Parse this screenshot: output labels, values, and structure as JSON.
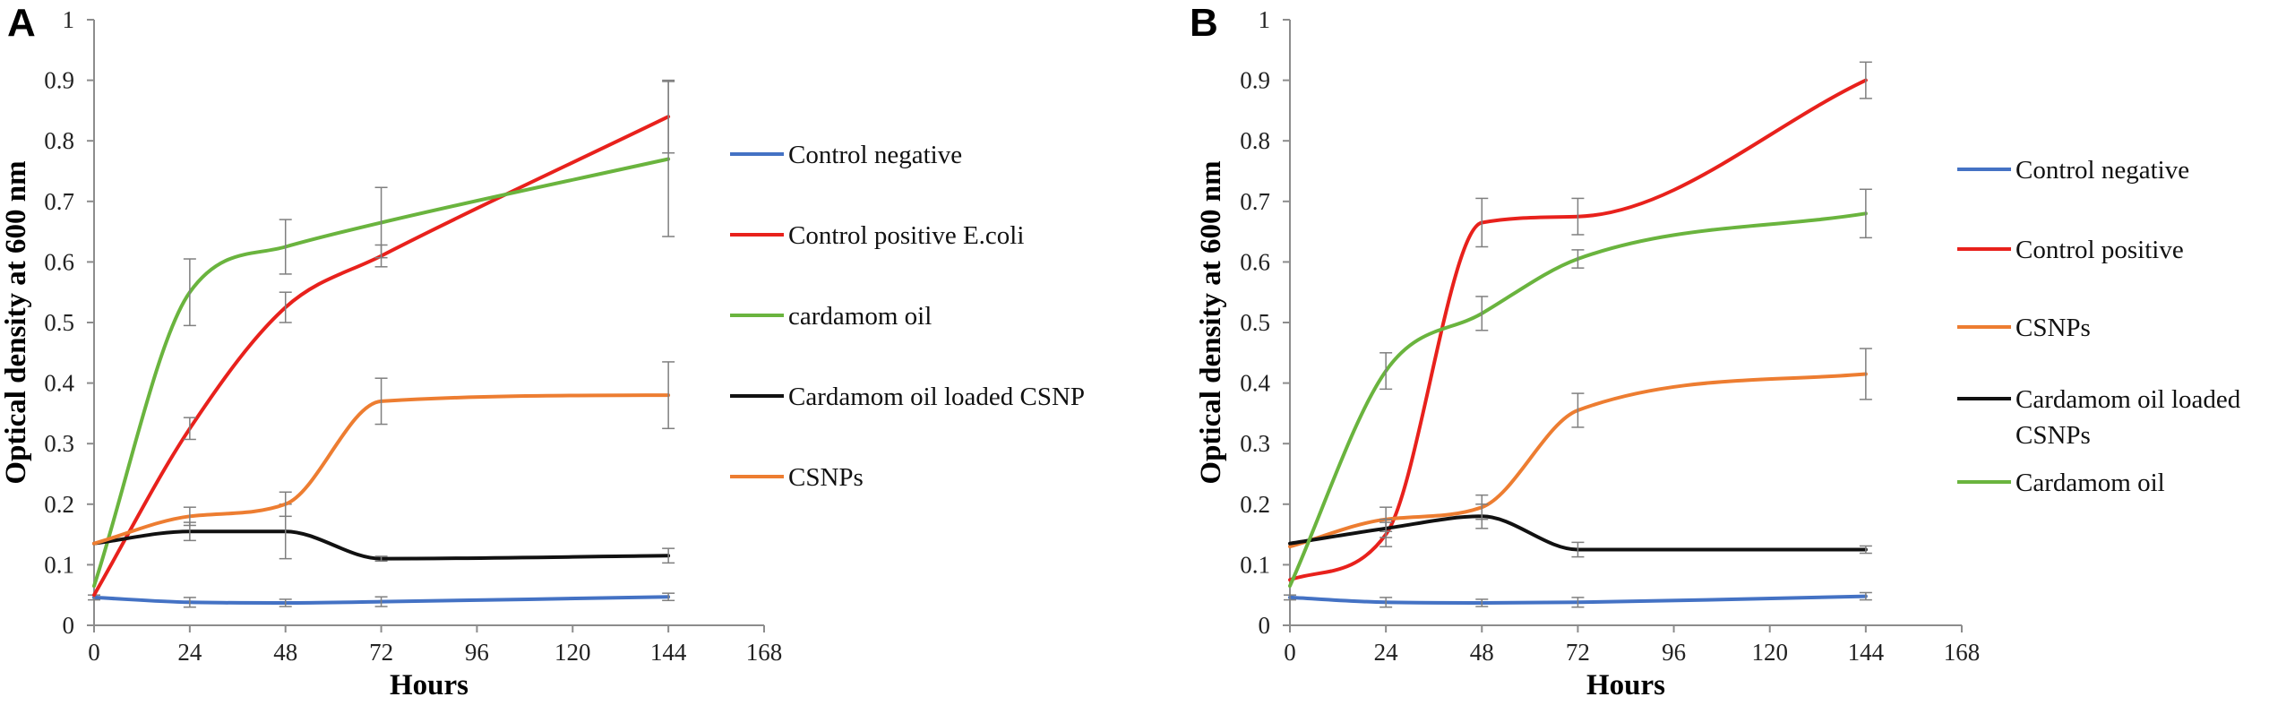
{
  "chart_data": [
    {
      "panel": "A",
      "type": "line",
      "xlabel": "Hours",
      "ylabel": "Optical density at 600 nm",
      "xlim": [
        0,
        168
      ],
      "ylim": [
        0,
        1
      ],
      "xticks": [
        "0",
        "24",
        "48",
        "72",
        "96",
        "120",
        "144",
        "168"
      ],
      "yticks": [
        "0",
        "0.1",
        "0.2",
        "0.3",
        "0.4",
        "0.5",
        "0.6",
        "0.7",
        "0.8",
        "0.9",
        "1"
      ],
      "x": [
        0,
        24,
        48,
        72,
        144
      ],
      "legend_position": "right",
      "series": [
        {
          "name": "Control negative",
          "color": "#4472C4",
          "values": [
            0.046,
            0.038,
            0.037,
            0.039,
            0.047
          ],
          "errors": [
            0.004,
            0.008,
            0.006,
            0.008,
            0.006
          ]
        },
        {
          "name": "Control positive E.coli",
          "color": "#E8211C",
          "values": [
            0.05,
            0.325,
            0.525,
            0.61,
            0.84
          ],
          "errors": [
            0.0,
            0.018,
            0.025,
            0.018,
            0.06
          ]
        },
        {
          "name": "cardamom oil",
          "color": "#6AB43E",
          "values": [
            0.065,
            0.55,
            0.625,
            0.665,
            0.77
          ],
          "errors": [
            0.0,
            0.055,
            0.045,
            0.058,
            0.128
          ]
        },
        {
          "name": "Cardamom oil loaded CSNP",
          "color": "#111111",
          "values": [
            0.135,
            0.155,
            0.155,
            0.11,
            0.115
          ],
          "errors": [
            0.0,
            0.015,
            0.045,
            0.004,
            0.012
          ]
        },
        {
          "name": "CSNPs",
          "color": "#ED7D31",
          "values": [
            0.135,
            0.18,
            0.2,
            0.37,
            0.38
          ],
          "errors": [
            0.0,
            0.015,
            0.02,
            0.038,
            0.055
          ]
        }
      ]
    },
    {
      "panel": "B",
      "type": "line",
      "xlabel": "Hours",
      "ylabel": "Optical density at 600 nm",
      "xlim": [
        0,
        168
      ],
      "ylim": [
        0,
        1
      ],
      "xticks": [
        "0",
        "24",
        "48",
        "72",
        "96",
        "120",
        "144",
        "168"
      ],
      "yticks": [
        "0",
        "0.1",
        "0.2",
        "0.3",
        "0.4",
        "0.5",
        "0.6",
        "0.7",
        "0.8",
        "0.9",
        "1"
      ],
      "x": [
        0,
        24,
        48,
        72,
        144
      ],
      "legend_position": "right",
      "series": [
        {
          "name": "Control negative",
          "color": "#4472C4",
          "values": [
            0.046,
            0.038,
            0.037,
            0.038,
            0.048
          ],
          "errors": [
            0.004,
            0.008,
            0.006,
            0.008,
            0.006
          ]
        },
        {
          "name": "Control positive",
          "color": "#E8211C",
          "values": [
            0.075,
            0.15,
            0.665,
            0.675,
            0.9
          ],
          "errors": [
            0.0,
            0.02,
            0.04,
            0.03,
            0.03
          ]
        },
        {
          "name": "CSNPs",
          "color": "#ED7D31",
          "values": [
            0.13,
            0.175,
            0.195,
            0.355,
            0.415
          ],
          "errors": [
            0.0,
            0.02,
            0.02,
            0.028,
            0.042
          ]
        },
        {
          "name": "Cardamom oil loaded CSNPs",
          "color": "#111111",
          "values": [
            0.135,
            0.16,
            0.18,
            0.125,
            0.125
          ],
          "errors": [
            0.0,
            0.015,
            0.02,
            0.012,
            0.006
          ]
        },
        {
          "name": "Cardamom oil",
          "color": "#6AB43E",
          "values": [
            0.065,
            0.42,
            0.515,
            0.605,
            0.68
          ],
          "errors": [
            0.0,
            0.03,
            0.028,
            0.015,
            0.04
          ]
        }
      ]
    }
  ]
}
